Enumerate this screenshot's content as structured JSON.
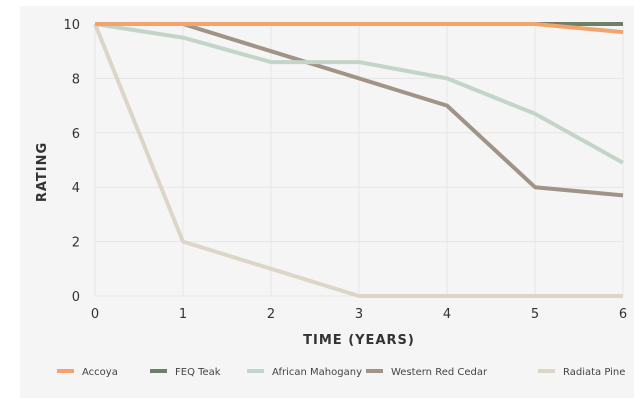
{
  "chart_data": {
    "type": "line",
    "title": "",
    "xlabel": "TIME (YEARS)",
    "ylabel": "RATING",
    "xlim": [
      0,
      6
    ],
    "ylim": [
      0,
      10
    ],
    "x_ticks": [
      "0",
      "1",
      "2",
      "3",
      "4",
      "5",
      "6"
    ],
    "y_ticks": [
      "0",
      "2",
      "4",
      "6",
      "8",
      "10"
    ],
    "grid": true,
    "legend_position": "bottom",
    "x": [
      0,
      1,
      2,
      3,
      4,
      5,
      6
    ],
    "series": [
      {
        "name": "Accoya",
        "color": "#f4a46a",
        "values": [
          10,
          10,
          10,
          10,
          10,
          10,
          9.7
        ]
      },
      {
        "name": "FEQ Teak",
        "color": "#6c7f68",
        "values": [
          10,
          10,
          10,
          10,
          10,
          10,
          10
        ]
      },
      {
        "name": "African Mahogany",
        "color": "#c2d5c8",
        "values": [
          10,
          9.5,
          8.6,
          8.6,
          8.0,
          6.7,
          4.9
        ]
      },
      {
        "name": "Western Red Cedar",
        "color": "#a19385",
        "values": [
          10,
          10,
          9.0,
          8.0,
          7.0,
          4.0,
          3.7
        ]
      },
      {
        "name": "Radiata Pine",
        "color": "#dbd6c8",
        "values": [
          10,
          2.0,
          1.0,
          0,
          0,
          0,
          0
        ]
      }
    ]
  }
}
